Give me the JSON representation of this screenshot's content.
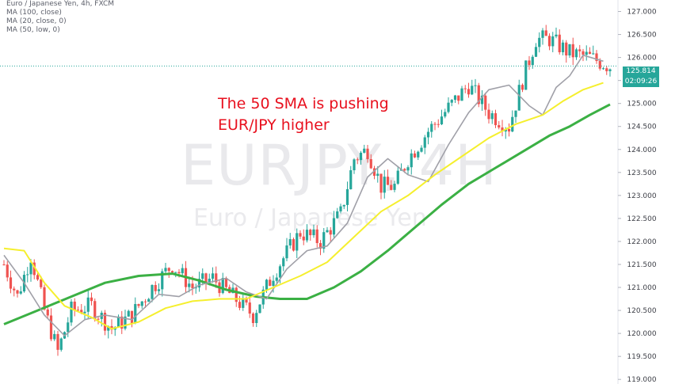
{
  "legend": {
    "title": "Euro / Japanese Yen, 4h, FXCM",
    "indicators": [
      "MA (100, close)",
      "MA (20, close, 0)",
      "MA (50, low, 0)"
    ]
  },
  "watermark": {
    "symbol": "EURJPY, 4H",
    "description": "Euro / Japanese Yen"
  },
  "annotation": {
    "line1": "The 50 SMA is pushing",
    "line2": "EUR/JPY higher"
  },
  "price_tags": {
    "last_price": "125.814",
    "countdown": "02:09:26"
  },
  "colors": {
    "up": "#26a69a",
    "down": "#ef5350",
    "ma_fast": "#a0a0a8",
    "ma_mid": "#f5ef2e",
    "ma_slow": "#3bb044",
    "annotation": "#e8101e"
  },
  "chart_data": {
    "type": "candlestick",
    "y_ticks": [
      "119.000",
      "119.500",
      "120.000",
      "120.500",
      "121.000",
      "121.500",
      "122.000",
      "122.500",
      "123.000",
      "123.500",
      "124.000",
      "124.500",
      "125.000",
      "125.500",
      "126.000",
      "126.500",
      "127.000"
    ],
    "ylim": [
      118.9,
      127.25
    ],
    "last_price": 125.814,
    "series": [
      {
        "name": "MA (100, close)",
        "color": "#3bb044",
        "points": [
          [
            0,
            120.2
          ],
          [
            10,
            120.5
          ],
          [
            20,
            120.8
          ],
          [
            30,
            121.1
          ],
          [
            40,
            121.25
          ],
          [
            50,
            121.3
          ],
          [
            58,
            121.15
          ],
          [
            66,
            120.95
          ],
          [
            75,
            120.8
          ],
          [
            82,
            120.75
          ],
          [
            90,
            120.75
          ],
          [
            98,
            121.0
          ],
          [
            106,
            121.35
          ],
          [
            114,
            121.8
          ],
          [
            122,
            122.3
          ],
          [
            130,
            122.8
          ],
          [
            138,
            123.25
          ],
          [
            146,
            123.6
          ],
          [
            154,
            123.95
          ],
          [
            162,
            124.3
          ],
          [
            168,
            124.5
          ],
          [
            174,
            124.75
          ],
          [
            180,
            124.98
          ]
        ]
      },
      {
        "name": "MA (20, close, 0)",
        "color": "#a0a0a8",
        "points": [
          [
            0,
            121.7
          ],
          [
            6,
            121.1
          ],
          [
            12,
            120.4
          ],
          [
            18,
            119.95
          ],
          [
            24,
            120.3
          ],
          [
            30,
            120.4
          ],
          [
            38,
            120.3
          ],
          [
            46,
            120.85
          ],
          [
            52,
            120.8
          ],
          [
            58,
            121.05
          ],
          [
            66,
            121.2
          ],
          [
            72,
            120.9
          ],
          [
            78,
            120.75
          ],
          [
            84,
            121.4
          ],
          [
            90,
            121.8
          ],
          [
            96,
            121.9
          ],
          [
            102,
            122.4
          ],
          [
            108,
            123.4
          ],
          [
            114,
            123.8
          ],
          [
            120,
            123.45
          ],
          [
            126,
            123.3
          ],
          [
            132,
            124.1
          ],
          [
            138,
            124.8
          ],
          [
            144,
            125.3
          ],
          [
            150,
            125.4
          ],
          [
            156,
            124.95
          ],
          [
            160,
            124.75
          ],
          [
            164,
            125.35
          ],
          [
            168,
            125.6
          ],
          [
            172,
            126.05
          ],
          [
            178,
            125.92
          ]
        ]
      },
      {
        "name": "MA (50, low, 0)",
        "color": "#f5ef2e",
        "points": [
          [
            0,
            121.85
          ],
          [
            6,
            121.8
          ],
          [
            12,
            121.1
          ],
          [
            18,
            120.6
          ],
          [
            26,
            120.35
          ],
          [
            32,
            120.1
          ],
          [
            40,
            120.25
          ],
          [
            48,
            120.55
          ],
          [
            56,
            120.7
          ],
          [
            64,
            120.75
          ],
          [
            72,
            120.75
          ],
          [
            80,
            121.0
          ],
          [
            88,
            121.25
          ],
          [
            96,
            121.55
          ],
          [
            104,
            122.1
          ],
          [
            112,
            122.65
          ],
          [
            120,
            123.0
          ],
          [
            128,
            123.45
          ],
          [
            136,
            123.85
          ],
          [
            144,
            124.25
          ],
          [
            152,
            124.55
          ],
          [
            160,
            124.75
          ],
          [
            166,
            125.05
          ],
          [
            172,
            125.3
          ],
          [
            178,
            125.45
          ]
        ]
      }
    ],
    "candle_path": [
      [
        0,
        121.5
      ],
      [
        4,
        120.8
      ],
      [
        8,
        121.7
      ],
      [
        12,
        120.5
      ],
      [
        16,
        119.6
      ],
      [
        20,
        120.5
      ],
      [
        26,
        120.6
      ],
      [
        32,
        120.1
      ],
      [
        38,
        120.4
      ],
      [
        44,
        121.0
      ],
      [
        50,
        121.5
      ],
      [
        56,
        121.0
      ],
      [
        62,
        121.2
      ],
      [
        68,
        120.8
      ],
      [
        74,
        120.4
      ],
      [
        80,
        121.3
      ],
      [
        88,
        122.2
      ],
      [
        94,
        122.0
      ],
      [
        100,
        122.6
      ],
      [
        104,
        123.8
      ],
      [
        108,
        124.0
      ],
      [
        112,
        123.2
      ],
      [
        116,
        123.2
      ],
      [
        120,
        123.8
      ],
      [
        126,
        124.4
      ],
      [
        132,
        124.9
      ],
      [
        138,
        125.4
      ],
      [
        144,
        124.8
      ],
      [
        150,
        124.5
      ],
      [
        154,
        125.5
      ],
      [
        158,
        126.4
      ],
      [
        162,
        126.4
      ],
      [
        168,
        126.1
      ],
      [
        174,
        126.0
      ],
      [
        180,
        125.81
      ]
    ]
  }
}
